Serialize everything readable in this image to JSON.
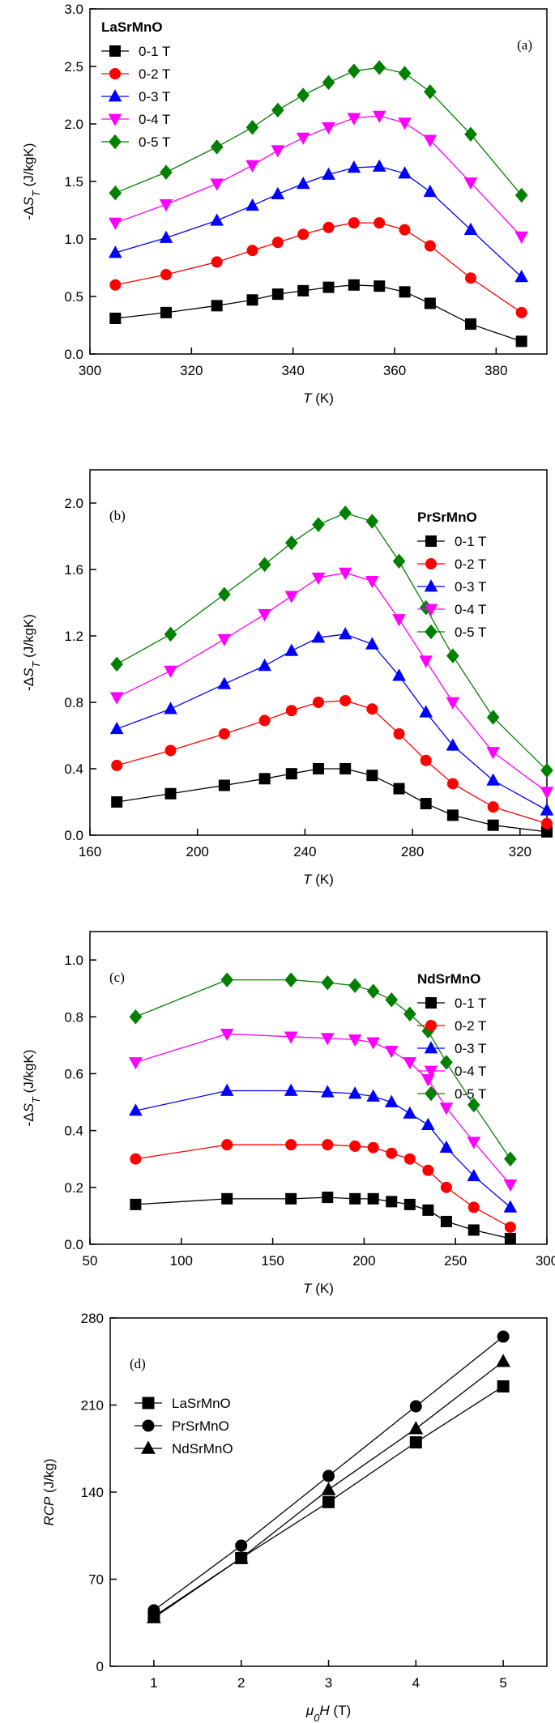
{
  "chart_data": [
    {
      "type": "line",
      "panel_label": "(a)",
      "legend_title": "LaSrMnO",
      "legend_position": "upper left",
      "xlabel": [
        {
          "text": "T",
          "style": "italic"
        },
        {
          "text": " (K)"
        }
      ],
      "ylabel": [
        {
          "text": "-Δ"
        },
        {
          "text": "S",
          "style": "italic"
        },
        {
          "text": "T",
          "style": "italic-sub"
        },
        {
          "text": " (J/kgK)"
        }
      ],
      "x": [
        305,
        315,
        325,
        332,
        337,
        342,
        347,
        352,
        357,
        362,
        367,
        375,
        385
      ],
      "xlim": [
        300,
        390
      ],
      "xticks": [
        300,
        320,
        340,
        360,
        380
      ],
      "ylim": [
        0,
        3
      ],
      "yticks": [
        {
          "value": 0,
          "label": "0.0"
        },
        0.5,
        {
          "value": 1,
          "label": "1.0"
        },
        1.5,
        {
          "value": 2,
          "label": "2.0"
        },
        2.5,
        {
          "value": 3,
          "label": "3.0"
        }
      ],
      "series": [
        {
          "name": "0-1 T",
          "color": "#000000",
          "marker": "square",
          "values": [
            0.31,
            0.36,
            0.42,
            0.47,
            0.52,
            0.55,
            0.58,
            0.6,
            0.59,
            0.54,
            0.44,
            0.26,
            0.11
          ]
        },
        {
          "name": "0-2 T",
          "color": "#ff0000",
          "marker": "circle",
          "values": [
            0.6,
            0.69,
            0.8,
            0.9,
            0.97,
            1.04,
            1.1,
            1.14,
            1.14,
            1.08,
            0.94,
            0.66,
            0.36
          ]
        },
        {
          "name": "0-3 T",
          "color": "#0000ff",
          "marker": "triangle-up",
          "values": [
            0.88,
            1.01,
            1.16,
            1.29,
            1.39,
            1.48,
            1.56,
            1.62,
            1.63,
            1.57,
            1.41,
            1.08,
            0.67
          ]
        },
        {
          "name": "0-4 T",
          "color": "#ff00ff",
          "marker": "triangle-down",
          "values": [
            1.14,
            1.3,
            1.48,
            1.64,
            1.77,
            1.88,
            1.97,
            2.05,
            2.07,
            2.01,
            1.86,
            1.49,
            1.02
          ]
        },
        {
          "name": "0-5 T",
          "color": "#008000",
          "marker": "diamond",
          "values": [
            1.4,
            1.58,
            1.8,
            1.97,
            2.12,
            2.25,
            2.36,
            2.46,
            2.49,
            2.44,
            2.28,
            1.91,
            1.38
          ]
        }
      ]
    },
    {
      "type": "line",
      "panel_label": "(b)",
      "legend_title": "PrSrMnO",
      "legend_position": "upper right",
      "xlabel": [
        {
          "text": "T",
          "style": "italic"
        },
        {
          "text": " (K)"
        }
      ],
      "ylabel": [
        {
          "text": "-Δ"
        },
        {
          "text": "S",
          "style": "italic"
        },
        {
          "text": "T",
          "style": "italic-sub"
        },
        {
          "text": " (J/kgK)"
        }
      ],
      "x": [
        170,
        190,
        210,
        225,
        235,
        245,
        255,
        265,
        275,
        285,
        295,
        310,
        330
      ],
      "xlim": [
        160,
        330
      ],
      "xticks": [
        160,
        200,
        240,
        280,
        320
      ],
      "ylim": [
        0,
        2.2
      ],
      "yticks": [
        {
          "value": 0,
          "label": "0.0"
        },
        0.4,
        0.8,
        1.2,
        1.6,
        {
          "value": 2,
          "label": "2.0"
        }
      ],
      "series": [
        {
          "name": "0-1 T",
          "color": "#000000",
          "marker": "square",
          "values": [
            0.2,
            0.25,
            0.3,
            0.34,
            0.37,
            0.4,
            0.4,
            0.36,
            0.28,
            0.19,
            0.12,
            0.06,
            0.02
          ]
        },
        {
          "name": "0-2 T",
          "color": "#ff0000",
          "marker": "circle",
          "values": [
            0.42,
            0.51,
            0.61,
            0.69,
            0.75,
            0.8,
            0.81,
            0.76,
            0.61,
            0.45,
            0.31,
            0.17,
            0.07
          ]
        },
        {
          "name": "0-3 T",
          "color": "#0000ff",
          "marker": "triangle-up",
          "values": [
            0.64,
            0.76,
            0.91,
            1.02,
            1.11,
            1.19,
            1.21,
            1.15,
            0.96,
            0.74,
            0.54,
            0.33,
            0.15
          ]
        },
        {
          "name": "0-4 T",
          "color": "#ff00ff",
          "marker": "triangle-down",
          "values": [
            0.83,
            0.99,
            1.18,
            1.33,
            1.44,
            1.55,
            1.58,
            1.53,
            1.3,
            1.05,
            0.8,
            0.5,
            0.26
          ]
        },
        {
          "name": "0-5 T",
          "color": "#008000",
          "marker": "diamond",
          "values": [
            1.03,
            1.21,
            1.45,
            1.63,
            1.76,
            1.87,
            1.94,
            1.89,
            1.65,
            1.37,
            1.08,
            0.71,
            0.39
          ]
        }
      ]
    },
    {
      "type": "line",
      "panel_label": "(c)",
      "legend_title": "NdSrMnO",
      "legend_position": "upper right",
      "xlabel": [
        {
          "text": "T",
          "style": "italic"
        },
        {
          "text": " (K)"
        }
      ],
      "ylabel": [
        {
          "text": "-Δ"
        },
        {
          "text": "S",
          "style": "italic"
        },
        {
          "text": "T",
          "style": "italic-sub"
        },
        {
          "text": " (J/kgK)"
        }
      ],
      "x": [
        75,
        125,
        160,
        180,
        195,
        205,
        215,
        225,
        235,
        245,
        260,
        280
      ],
      "xlim": [
        50,
        300
      ],
      "xticks": [
        50,
        100,
        150,
        200,
        250,
        300
      ],
      "ylim": [
        0,
        1.1
      ],
      "yticks": [
        {
          "value": 0,
          "label": "0.0"
        },
        0.2,
        0.4,
        0.6,
        0.8,
        {
          "value": 1,
          "label": "1.0"
        }
      ],
      "series": [
        {
          "name": "0-1 T",
          "color": "#000000",
          "marker": "square",
          "values": [
            0.14,
            0.16,
            0.16,
            0.165,
            0.16,
            0.16,
            0.15,
            0.14,
            0.12,
            0.08,
            0.05,
            0.02
          ]
        },
        {
          "name": "0-2 T",
          "color": "#ff0000",
          "marker": "circle",
          "values": [
            0.3,
            0.35,
            0.35,
            0.35,
            0.345,
            0.34,
            0.32,
            0.3,
            0.26,
            0.2,
            0.13,
            0.06
          ]
        },
        {
          "name": "0-3 T",
          "color": "#0000ff",
          "marker": "triangle-up",
          "values": [
            0.47,
            0.54,
            0.54,
            0.535,
            0.53,
            0.52,
            0.5,
            0.46,
            0.42,
            0.34,
            0.24,
            0.13
          ]
        },
        {
          "name": "0-4 T",
          "color": "#ff00ff",
          "marker": "triangle-down",
          "values": [
            0.64,
            0.74,
            0.73,
            0.725,
            0.72,
            0.71,
            0.68,
            0.64,
            0.58,
            0.48,
            0.36,
            0.21
          ]
        },
        {
          "name": "0-5 T",
          "color": "#008000",
          "marker": "diamond",
          "values": [
            0.8,
            0.93,
            0.93,
            0.92,
            0.91,
            0.89,
            0.86,
            0.81,
            0.75,
            0.64,
            0.49,
            0.3
          ]
        }
      ]
    },
    {
      "type": "line",
      "panel_label": "(d)",
      "legend_position": "upper left",
      "xlabel": [
        {
          "text": "μ",
          "style": "italic"
        },
        {
          "text": "0",
          "style": "italic-sub"
        },
        {
          "text": "H",
          "style": "italic"
        },
        {
          "text": " (T)"
        }
      ],
      "ylabel": [
        {
          "text": "RCP",
          "style": "italic"
        },
        {
          "text": " (J/kg)"
        }
      ],
      "x": [
        1,
        2,
        3,
        4,
        5
      ],
      "xlim": [
        0.5,
        5.5
      ],
      "xticks": [
        1,
        2,
        3,
        4,
        5
      ],
      "ylim": [
        0,
        280
      ],
      "yticks": [
        0,
        70,
        140,
        210,
        280
      ],
      "series": [
        {
          "name": "LaSrMnO",
          "color": "#000000",
          "marker": "square",
          "values": [
            40,
            87,
            132,
            180,
            225
          ]
        },
        {
          "name": "PrSrMnO",
          "color": "#000000",
          "marker": "circle",
          "values": [
            45,
            97,
            153,
            209,
            265
          ]
        },
        {
          "name": "NdSrMnO",
          "color": "#000000",
          "marker": "triangle-up",
          "values": [
            39,
            87,
            142,
            191,
            245
          ]
        }
      ]
    }
  ]
}
